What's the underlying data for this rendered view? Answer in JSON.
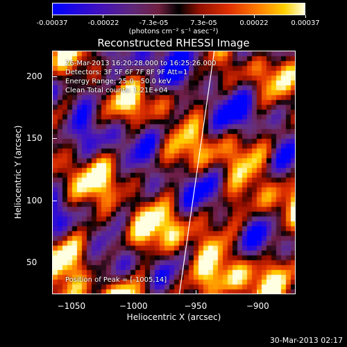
{
  "chart_data": {
    "type": "heatmap",
    "title": "Reconstructed RHESSI Image",
    "xlabel": "Heliocentric X (arcsec)",
    "ylabel": "Heliocentric Y (arcsec)",
    "xlim": [
      -1065,
      -870
    ],
    "ylim": [
      25,
      220
    ],
    "xticks": [
      -1050,
      -1000,
      -950,
      -900
    ],
    "yticks": [
      50,
      100,
      150,
      200
    ],
    "colorbar": {
      "ticks": [
        "-0.00037",
        "-0.00022",
        "-7.3e-05",
        "7.3e-05",
        "0.00022",
        "0.00037"
      ],
      "values": [
        -0.00037,
        -0.00022,
        -7.3e-05,
        7.3e-05,
        0.00022,
        0.00037
      ],
      "units": "(photons cm⁻² s⁻¹ asec⁻²)"
    },
    "annotations": [
      "26-Mar-2013 16:20:28.000 to 16:25:26.000",
      "Detectors: 3F 5F 6F 7F 8F 9F  Att=1",
      "Energy Range: 25.0 - 50.0 keV",
      "Clean    Total counts: 1.21E+04"
    ],
    "peak_label": "Position of Peak = [-1005,14]",
    "limb_line": [
      [
        -963,
        25
      ],
      [
        -935,
        220
      ]
    ]
  },
  "footer": {
    "timestamp": "30-Mar-2013 02:17"
  }
}
